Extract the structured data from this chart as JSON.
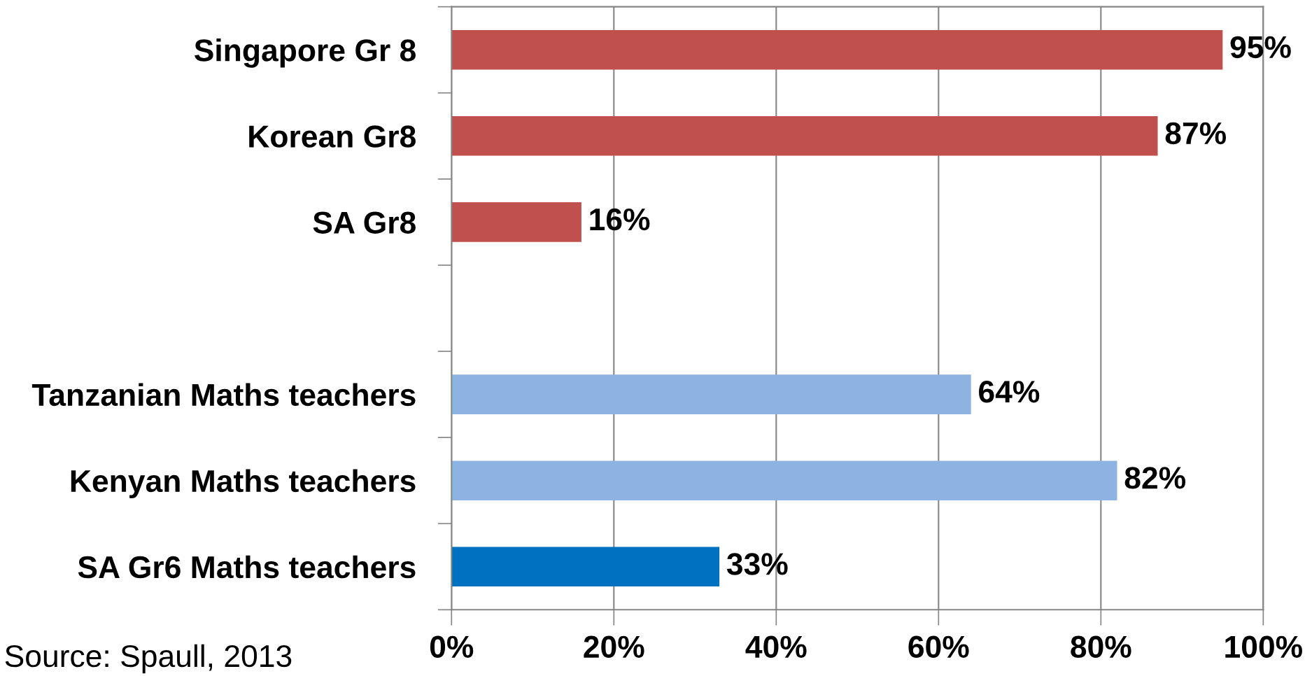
{
  "chart_data": {
    "type": "bar",
    "orientation": "horizontal",
    "categories": [
      "Singapore Gr 8",
      "Korean Gr8",
      "SA Gr8",
      null,
      "Tanzanian Maths teachers",
      "Kenyan Maths teachers",
      "SA Gr6 Maths teachers"
    ],
    "values": [
      95,
      87,
      16,
      null,
      64,
      82,
      33
    ],
    "colors": [
      "#c0504d",
      "#c0504d",
      "#c0504d",
      null,
      "#8db3e2",
      "#8db3e2",
      "#0070c0"
    ],
    "value_labels": [
      "95%",
      "87%",
      "16%",
      null,
      "64%",
      "82%",
      "33%"
    ],
    "xlim": [
      0,
      100
    ],
    "xticks": [
      {
        "value": 0,
        "label": "0%"
      },
      {
        "value": 20,
        "label": "20%"
      },
      {
        "value": 40,
        "label": "40%"
      },
      {
        "value": 60,
        "label": "60%"
      },
      {
        "value": 80,
        "label": "80%"
      },
      {
        "value": 100,
        "label": "100%"
      }
    ],
    "grid": "x",
    "annotations": [
      "Source: Spaull, 2013"
    ]
  }
}
